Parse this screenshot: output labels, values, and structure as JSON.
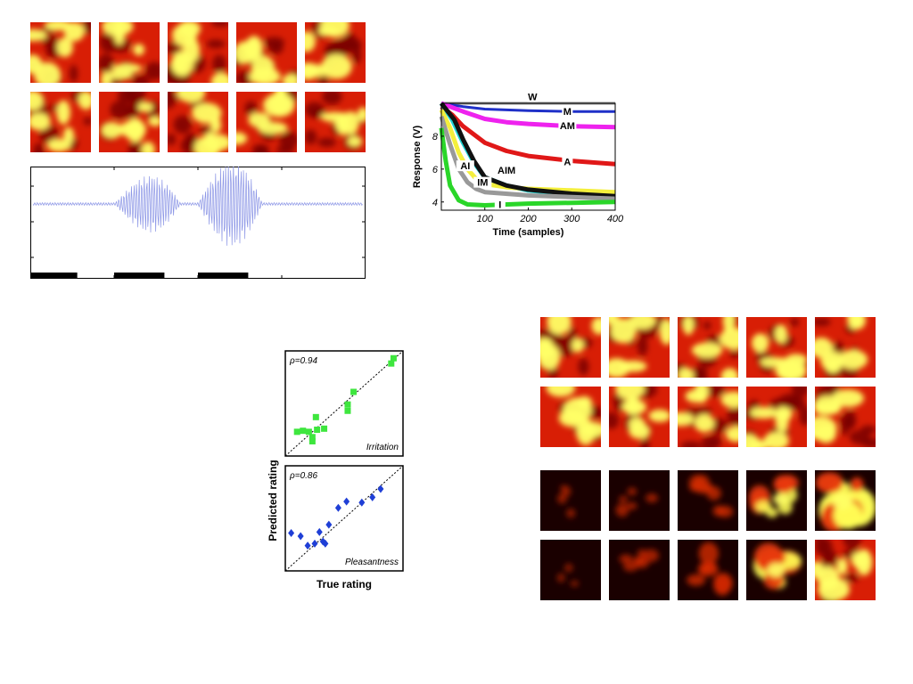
{
  "colors": {
    "hot_dark": "#7a0000",
    "hot_red": "#d81e05",
    "hot_yellow": "#ffff66",
    "waveform": "#8c96e6"
  },
  "panels": {
    "tiles_a": {
      "name": "heatmap-grid-top-left",
      "rows": 2,
      "cols": 5
    },
    "tiles_b": {
      "name": "heatmap-grid-right-upper",
      "rows": 2,
      "cols": 5
    },
    "tiles_c": {
      "name": "heatmap-grid-right-lower",
      "rows": 2,
      "cols": 5,
      "intensity": [
        [
          0.15,
          0.3,
          0.45,
          0.7,
          0.95
        ],
        [
          0.1,
          0.35,
          0.55,
          0.8,
          1.0
        ]
      ]
    }
  },
  "chart_data": [
    {
      "type": "line",
      "name": "sensor-response",
      "xlabel": "Time (samples)",
      "ylabel": "Response (V)",
      "xlim": [
        0,
        400
      ],
      "ylim": [
        3.5,
        10
      ],
      "xticks": [
        100,
        200,
        300,
        400
      ],
      "yticks": [
        4,
        6,
        8
      ],
      "series": [
        {
          "name": "W",
          "color": "#8c8c8c",
          "x": [
            0,
            400
          ],
          "y": [
            10,
            10
          ]
        },
        {
          "name": "M",
          "color": "#1f30c8",
          "x": [
            0,
            50,
            100,
            200,
            300,
            400
          ],
          "y": [
            10,
            9.8,
            9.65,
            9.55,
            9.5,
            9.5
          ]
        },
        {
          "name": "AM",
          "color": "#ee22ee",
          "x": [
            0,
            50,
            100,
            150,
            200,
            300,
            400
          ],
          "y": [
            10,
            9.5,
            9.05,
            8.85,
            8.75,
            8.6,
            8.55
          ]
        },
        {
          "name": "A",
          "color": "#e01818",
          "x": [
            0,
            25,
            50,
            100,
            150,
            200,
            300,
            400
          ],
          "y": [
            9.8,
            9.3,
            8.6,
            7.6,
            7.1,
            6.8,
            6.5,
            6.3
          ]
        },
        {
          "name": "AIM",
          "color": "#1fd3d3",
          "x": [
            0,
            25,
            50,
            75,
            100,
            150,
            200,
            300,
            400
          ],
          "y": [
            10,
            9.0,
            7.6,
            6.4,
            5.5,
            5.0,
            4.7,
            4.45,
            4.3
          ]
        },
        {
          "name": "AI",
          "color": "#f4ef3c",
          "x": [
            0,
            20,
            40,
            60,
            80,
            100,
            150,
            200,
            300,
            400
          ],
          "y": [
            9.6,
            8.5,
            7.0,
            6.0,
            5.4,
            5.1,
            4.9,
            4.8,
            4.7,
            4.6
          ]
        },
        {
          "name": "",
          "color": "#111111",
          "x": [
            0,
            30,
            50,
            75,
            100,
            150,
            200,
            300,
            400
          ],
          "y": [
            10,
            9.0,
            7.8,
            6.5,
            5.5,
            5.0,
            4.75,
            4.5,
            4.35
          ]
        },
        {
          "name": "IM",
          "color": "#999999",
          "x": [
            0,
            20,
            40,
            60,
            80,
            100,
            200,
            300,
            400
          ],
          "y": [
            9.2,
            7.5,
            6.0,
            5.2,
            4.8,
            4.6,
            4.4,
            4.3,
            4.2
          ]
        },
        {
          "name": "I",
          "color": "#2ad629",
          "x": [
            0,
            10,
            20,
            40,
            60,
            100,
            200,
            300,
            400
          ],
          "y": [
            8.5,
            6.5,
            5.0,
            4.1,
            3.85,
            3.8,
            3.9,
            3.95,
            4.0
          ]
        }
      ],
      "labels": [
        {
          "text": "W",
          "x": 210,
          "y": 10.4
        },
        {
          "text": "M",
          "x": 290,
          "y": 9.5
        },
        {
          "text": "AM",
          "x": 290,
          "y": 8.65
        },
        {
          "text": "A",
          "x": 290,
          "y": 6.45
        },
        {
          "text": "AI",
          "x": 55,
          "y": 6.2
        },
        {
          "text": "AIM",
          "x": 150,
          "y": 5.95
        },
        {
          "text": "IM",
          "x": 95,
          "y": 5.2
        },
        {
          "text": "I",
          "x": 135,
          "y": 3.85
        }
      ]
    },
    {
      "type": "scatter",
      "name": "irritation-scatter",
      "annotation": "ρ=0.94",
      "label": "Irritation",
      "marker": "square",
      "color": "#3ee63e",
      "xlim": [
        0,
        10
      ],
      "ylim": [
        0,
        10
      ],
      "points": [
        [
          1.0,
          2.3
        ],
        [
          1.5,
          2.4
        ],
        [
          2.0,
          2.3
        ],
        [
          2.3,
          1.8
        ],
        [
          2.3,
          1.4
        ],
        [
          2.6,
          3.7
        ],
        [
          2.7,
          2.5
        ],
        [
          3.3,
          2.6
        ],
        [
          5.3,
          4.3
        ],
        [
          5.3,
          4.9
        ],
        [
          5.8,
          6.1
        ],
        [
          9.0,
          8.8
        ],
        [
          9.2,
          9.3
        ]
      ],
      "reference_line": [
        [
          0,
          0
        ],
        [
          10,
          10
        ]
      ]
    },
    {
      "type": "scatter",
      "name": "pleasantness-scatter",
      "annotation": "ρ=0.86",
      "label": "Pleasantness",
      "xlabel": "True rating",
      "ylabel": "Predicted rating",
      "marker": "diamond",
      "color": "#1f3fd6",
      "xlim": [
        0,
        10
      ],
      "ylim": [
        0,
        10
      ],
      "points": [
        [
          0.5,
          3.6
        ],
        [
          1.3,
          3.3
        ],
        [
          1.9,
          2.4
        ],
        [
          2.5,
          2.6
        ],
        [
          2.9,
          3.7
        ],
        [
          3.2,
          2.8
        ],
        [
          3.4,
          2.6
        ],
        [
          3.7,
          4.4
        ],
        [
          4.5,
          6.0
        ],
        [
          5.2,
          6.6
        ],
        [
          6.5,
          6.5
        ],
        [
          7.4,
          7.0
        ],
        [
          8.1,
          7.8
        ]
      ],
      "reference_line": [
        [
          0,
          0
        ],
        [
          10,
          10
        ]
      ]
    },
    {
      "type": "line",
      "name": "waveform",
      "bars": [
        [
          0,
          0.14
        ],
        [
          0.25,
          0.4
        ],
        [
          0.5,
          0.65
        ]
      ]
    }
  ]
}
